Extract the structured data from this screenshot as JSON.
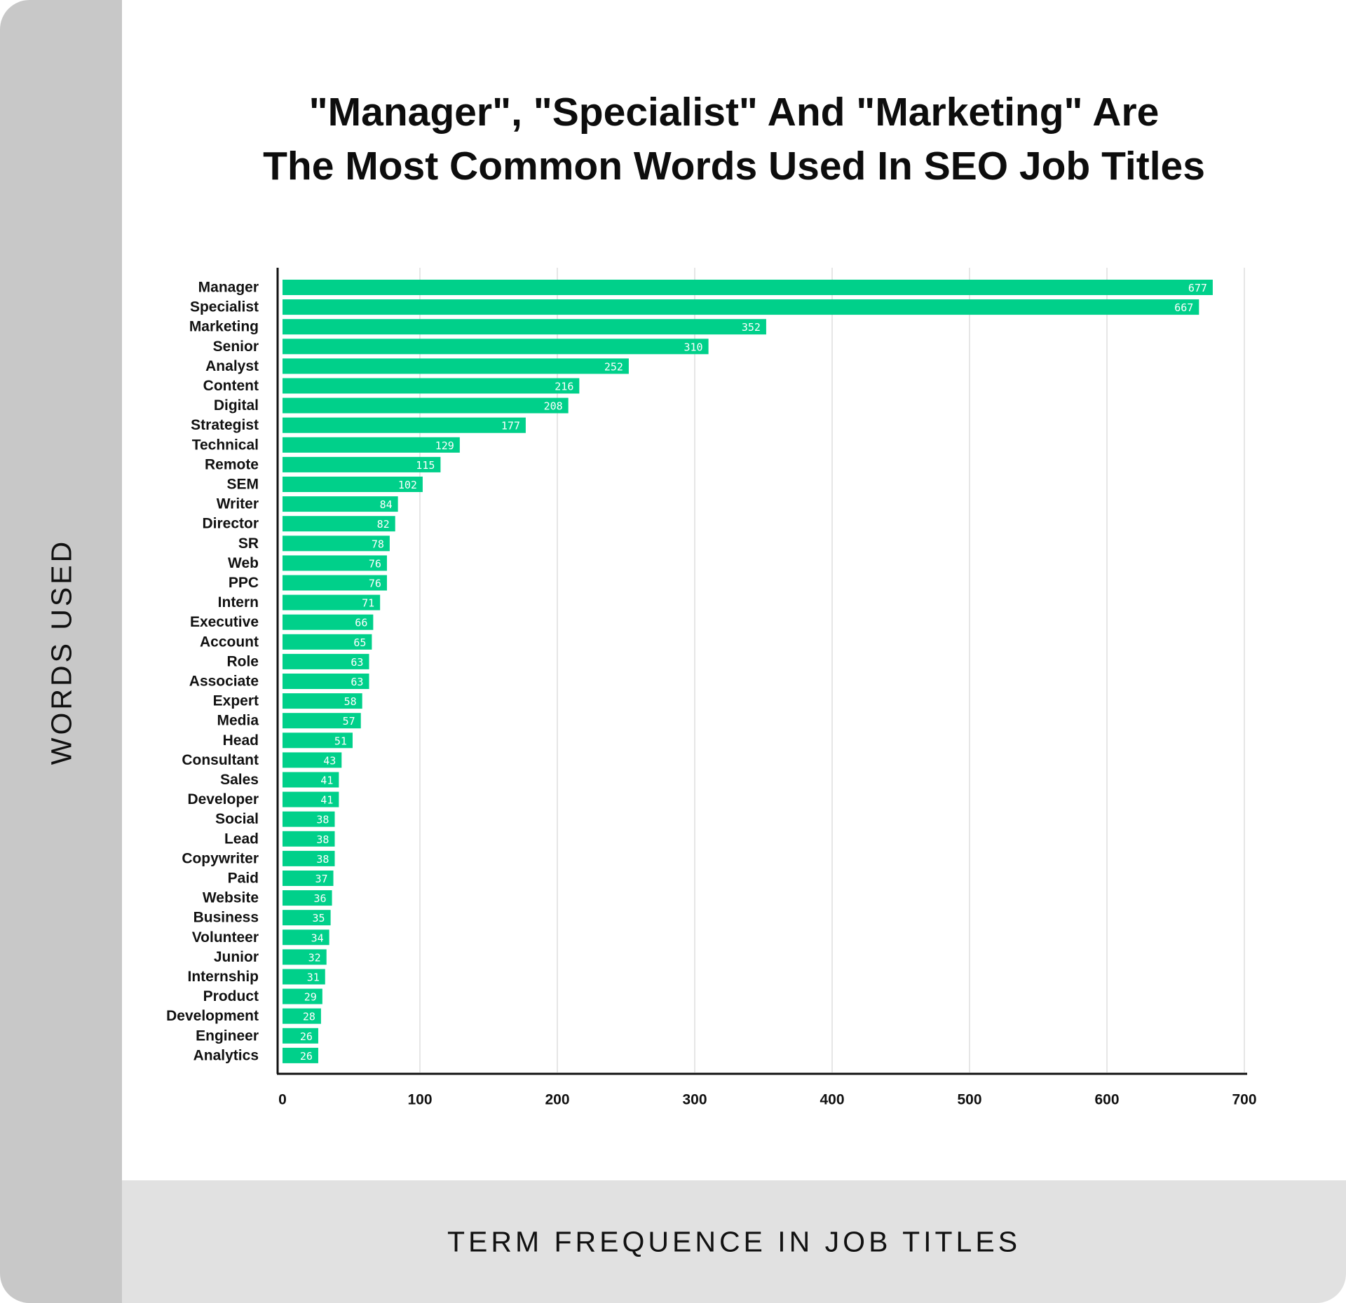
{
  "colors": {
    "bar": "#00d08a",
    "left_band": "#c8c8c8",
    "bottom_band": "#e1e1e1",
    "text": "#111111",
    "grid": "#e6e6e6"
  },
  "chart_data": {
    "type": "bar",
    "orientation": "horizontal",
    "title_lines": [
      "\"Manager\", \"Specialist\" And \"Marketing\" Are",
      "The Most Common Words Used In SEO Job Titles"
    ],
    "xlabel": "TERM FREQUENCE IN JOB TITLES",
    "ylabel": "WORDS USED",
    "xlim": [
      0,
      700
    ],
    "xticks": [
      0,
      100,
      200,
      300,
      400,
      500,
      600,
      700
    ],
    "grid": true,
    "categories": [
      "Manager",
      "Specialist",
      "Marketing",
      "Senior",
      "Analyst",
      "Content",
      "Digital",
      "Strategist",
      "Technical",
      "Remote",
      "SEM",
      "Writer",
      "Director",
      "SR",
      "Web",
      "PPC",
      "Intern",
      "Executive",
      "Account",
      "Role",
      "Associate",
      "Expert",
      "Media",
      "Head",
      "Consultant",
      "Sales",
      "Developer",
      "Social",
      "Lead",
      "Copywriter",
      "Paid",
      "Website",
      "Business",
      "Volunteer",
      "Junior",
      "Internship",
      "Product",
      "Development",
      "Engineer",
      "Analytics"
    ],
    "values": [
      677,
      667,
      352,
      310,
      252,
      216,
      208,
      177,
      129,
      115,
      102,
      84,
      82,
      78,
      76,
      76,
      71,
      66,
      65,
      63,
      63,
      58,
      57,
      51,
      43,
      41,
      41,
      38,
      38,
      38,
      37,
      36,
      35,
      34,
      32,
      31,
      29,
      28,
      26,
      26
    ]
  }
}
